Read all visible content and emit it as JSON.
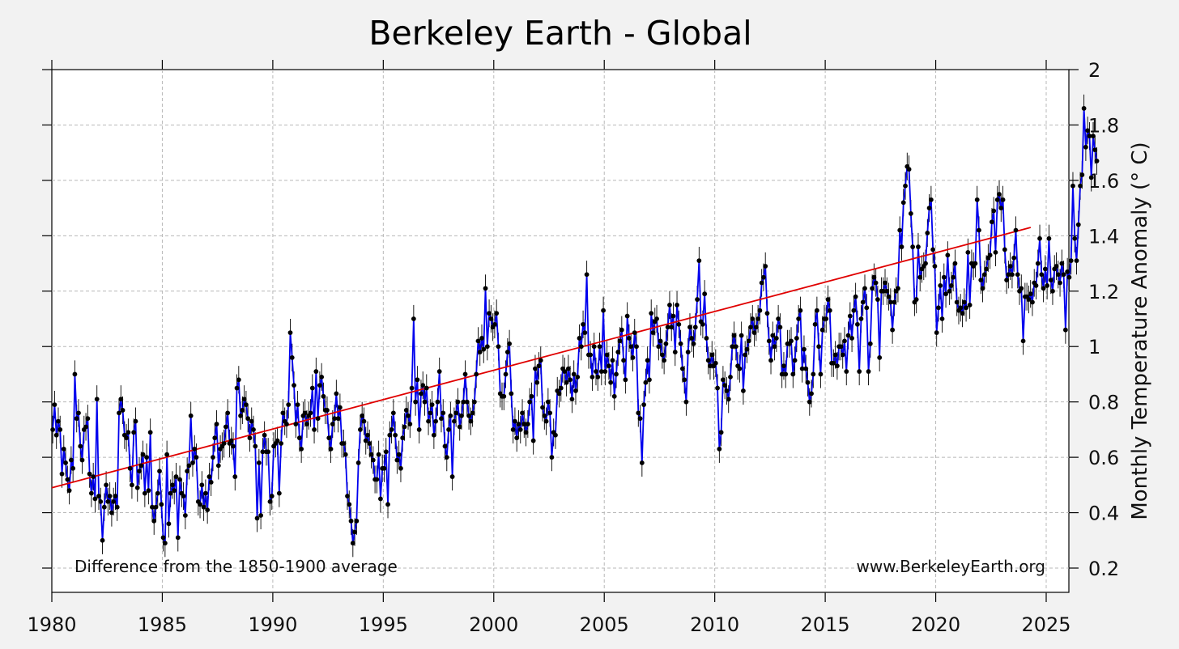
{
  "chart_data": {
    "type": "line",
    "title": "Berkeley Earth - Global",
    "xlabel": "",
    "ylabel": "Monthly Temperature Anomaly (° C)",
    "xlim": [
      1980,
      2026
    ],
    "ylim": [
      0.1,
      2.0
    ],
    "x_ticks": [
      "1980",
      "1985",
      "1990",
      "1995",
      "2000",
      "2005",
      "2010",
      "2015",
      "2020",
      "2025"
    ],
    "y_ticks": [
      "0.2",
      "0.4",
      "0.6",
      "0.8",
      "1",
      "1.2",
      "1.4",
      "1.6",
      "1.8",
      "2"
    ],
    "grid": true,
    "annotations": {
      "left": "Difference from the 1850-1900 average",
      "right": "www.BerkeleyEarth.org"
    },
    "colors": {
      "series": "#0000ee",
      "points": "#000000",
      "errorbars": "#000000",
      "trend": "#e00000"
    },
    "start_year": 1980,
    "months_per_year": 12,
    "error_bar_halfwidth": 0.05,
    "series": [
      {
        "values": [
          0.7,
          0.79,
          0.68,
          0.73,
          0.7,
          0.54,
          0.63,
          0.58,
          0.52,
          0.48,
          0.59,
          0.56,
          0.9,
          0.74,
          0.76,
          0.64,
          0.59,
          0.7,
          0.71,
          0.74,
          0.54,
          0.47,
          0.53,
          0.45,
          0.81,
          0.46,
          0.44,
          0.3,
          0.42,
          0.5,
          0.44,
          0.46,
          0.4,
          0.44,
          0.46,
          0.42,
          0.76,
          0.81,
          0.77,
          0.68,
          0.67,
          0.69,
          0.56,
          0.5,
          0.69,
          0.73,
          0.49,
          0.55,
          0.57,
          0.61,
          0.47,
          0.6,
          0.48,
          0.69,
          0.42,
          0.37,
          0.42,
          0.47,
          0.55,
          0.43,
          0.31,
          0.29,
          0.61,
          0.36,
          0.47,
          0.5,
          0.48,
          0.53,
          0.31,
          0.52,
          0.47,
          0.46,
          0.39,
          0.55,
          0.57,
          0.75,
          0.58,
          0.63,
          0.6,
          0.44,
          0.43,
          0.5,
          0.42,
          0.47,
          0.41,
          0.53,
          0.51,
          0.6,
          0.67,
          0.72,
          0.57,
          0.63,
          0.64,
          0.65,
          0.71,
          0.76,
          0.65,
          0.66,
          0.64,
          0.53,
          0.85,
          0.88,
          0.75,
          0.77,
          0.81,
          0.79,
          0.74,
          0.67,
          0.73,
          0.7,
          0.64,
          0.38,
          0.58,
          0.39,
          0.62,
          0.68,
          0.62,
          0.62,
          0.44,
          0.46,
          0.64,
          0.65,
          0.66,
          0.47,
          0.65,
          0.76,
          0.73,
          0.72,
          0.79,
          1.05,
          0.96,
          0.86,
          0.72,
          0.79,
          0.67,
          0.63,
          0.75,
          0.76,
          0.72,
          0.75,
          0.76,
          0.85,
          0.7,
          0.91,
          0.74,
          0.86,
          0.89,
          0.82,
          0.77,
          0.77,
          0.67,
          0.63,
          0.72,
          0.74,
          0.83,
          0.74,
          0.78,
          0.65,
          0.65,
          0.61,
          0.46,
          0.43,
          0.37,
          0.29,
          0.33,
          0.37,
          0.58,
          0.7,
          0.75,
          0.73,
          0.66,
          0.68,
          0.65,
          0.61,
          0.59,
          0.52,
          0.52,
          0.61,
          0.45,
          0.56,
          0.56,
          0.62,
          0.43,
          0.68,
          0.7,
          0.76,
          0.68,
          0.59,
          0.61,
          0.56,
          0.67,
          0.71,
          0.77,
          0.75,
          0.72,
          0.85,
          1.1,
          0.8,
          0.88,
          0.7,
          0.83,
          0.86,
          0.8,
          0.85,
          0.73,
          0.76,
          0.79,
          0.68,
          0.73,
          0.8,
          0.91,
          0.74,
          0.76,
          0.64,
          0.6,
          0.7,
          0.75,
          0.53,
          0.73,
          0.76,
          0.8,
          0.71,
          0.75,
          0.8,
          0.9,
          0.8,
          0.75,
          0.73,
          0.76,
          0.8,
          0.9,
          1.02,
          0.98,
          1.03,
          0.99,
          1.21,
          1.0,
          1.12,
          1.1,
          1.07,
          1.08,
          1.12,
          1.0,
          0.83,
          0.82,
          0.82,
          0.9,
          0.98,
          1.01,
          0.83,
          0.7,
          0.73,
          0.67,
          0.72,
          0.7,
          0.76,
          0.72,
          0.69,
          0.72,
          0.8,
          0.82,
          0.66,
          0.92,
          0.87,
          0.93,
          0.95,
          0.78,
          0.75,
          0.73,
          0.8,
          0.76,
          0.6,
          0.69,
          0.68,
          0.84,
          0.83,
          0.85,
          0.92,
          0.91,
          0.87,
          0.92,
          0.88,
          0.81,
          0.9,
          0.84,
          0.89,
          1.03,
          1.0,
          1.08,
          1.05,
          1.26,
          0.97,
          0.97,
          0.89,
          1.0,
          0.91,
          0.89,
          1.0,
          0.91,
          1.13,
          0.91,
          0.97,
          0.93,
          0.87,
          0.95,
          0.82,
          0.9,
          0.98,
          1.02,
          1.06,
          0.95,
          0.88,
          1.11,
          1.03,
          1.0,
          0.96,
          1.05,
          1.0,
          0.76,
          0.74,
          0.58,
          0.79,
          0.87,
          0.95,
          0.88,
          1.12,
          1.05,
          1.09,
          1.1,
          1.0,
          1.02,
          0.97,
          0.95,
          1.01,
          1.07,
          1.15,
          1.07,
          1.11,
          0.98,
          1.15,
          1.08,
          1.01,
          0.92,
          0.88,
          0.8,
          0.98,
          1.07,
          1.03,
          1.01,
          1.07,
          1.17,
          1.31,
          1.09,
          1.08,
          1.19,
          1.03,
          0.95,
          0.93,
          0.97,
          0.93,
          0.94,
          0.85,
          0.63,
          0.69,
          0.88,
          0.86,
          0.84,
          0.81,
          0.89,
          1.0,
          1.04,
          1.0,
          0.93,
          0.92,
          1.04,
          0.84,
          0.97,
          0.99,
          1.02,
          1.07,
          1.1,
          1.05,
          1.07,
          1.1,
          1.13,
          1.23,
          1.25,
          1.29,
          1.12,
          1.02,
          0.95,
          1.04,
          1.0,
          1.03,
          1.1,
          1.07,
          0.9,
          0.93,
          0.9,
          1.01,
          1.01,
          1.02,
          0.9,
          0.95,
          1.03,
          1.1,
          1.13,
          0.92,
          0.99,
          0.92,
          0.87,
          0.8,
          0.83,
          0.9,
          1.08,
          1.13,
          1.0,
          0.9,
          1.06,
          1.1,
          1.1,
          1.17,
          1.13,
          0.94,
          0.94,
          0.97,
          0.93,
          1.0,
          1.0,
          0.97,
          1.02,
          0.91,
          1.04,
          1.11,
          1.03,
          1.13,
          1.18,
          1.08,
          0.91,
          1.1,
          1.16,
          1.21,
          1.14,
          0.91,
          1.01,
          1.21,
          1.25,
          1.23,
          1.17,
          0.96,
          1.2,
          1.2,
          1.23,
          1.2,
          1.18,
          1.16,
          1.06,
          1.16,
          1.2,
          1.21,
          1.42,
          1.36,
          1.52,
          1.58,
          1.65,
          1.64,
          1.48,
          1.36,
          1.16,
          1.17,
          1.36,
          1.25,
          1.28,
          1.29,
          1.3,
          1.41,
          1.5,
          1.53,
          1.35,
          1.29,
          1.05,
          1.14,
          1.22,
          1.1,
          1.25,
          1.19,
          1.33,
          1.2,
          1.22,
          1.25,
          1.3,
          1.16,
          1.13,
          1.14,
          1.12,
          1.16,
          1.14,
          1.34,
          1.15,
          1.3,
          1.29,
          1.3,
          1.53,
          1.42,
          1.24,
          1.21,
          1.26,
          1.28,
          1.32,
          1.33,
          1.45,
          1.49,
          1.34,
          1.53,
          1.55,
          1.5,
          1.53,
          1.35,
          1.24,
          1.26,
          1.29,
          1.26,
          1.32,
          1.42,
          1.26,
          1.2,
          1.21,
          1.02,
          1.18,
          1.18,
          1.17,
          1.19,
          1.16,
          1.23,
          1.22,
          1.3,
          1.39,
          1.26,
          1.21,
          1.28,
          1.22,
          1.39,
          1.24,
          1.2,
          1.28,
          1.29,
          1.26,
          1.23,
          1.3,
          1.26,
          1.06,
          1.27,
          1.25,
          1.31,
          1.58,
          1.39,
          1.31,
          1.44,
          1.58,
          1.62,
          1.86,
          1.72,
          1.78,
          1.76,
          1.61,
          1.76,
          1.71,
          1.67
        ]
      }
    ],
    "trend": {
      "x": [
        1980,
        2024.3
      ],
      "y": [
        0.49,
        1.43
      ]
    }
  }
}
